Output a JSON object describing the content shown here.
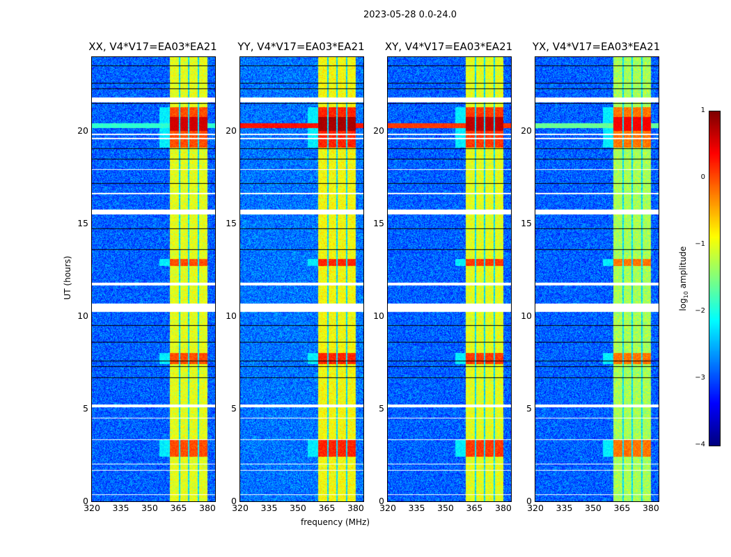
{
  "chart_data": {
    "type": "heatmap",
    "suptitle": "2023-05-28 0.0-24.0",
    "xlabel": "frequency (MHz)",
    "ylabel": "UT (hours)",
    "xlim": [
      320,
      384
    ],
    "ylim": [
      0,
      24
    ],
    "xticks": [
      320,
      335,
      350,
      365,
      380
    ],
    "yticks": [
      0,
      5,
      10,
      15,
      20
    ],
    "colormap": "jet",
    "colorbar": {
      "label": "log10 amplitude",
      "label_main": "log",
      "label_sub": "10",
      "label_rest": " amplitude",
      "range": [
        -4,
        1
      ],
      "ticks": [
        1,
        0,
        -1,
        -2,
        -3,
        -4
      ],
      "tick_labels": [
        "1",
        "0",
        "−1",
        "−2",
        "−3",
        "−4"
      ]
    },
    "panels": [
      {
        "title": "XX, V4*V17=EA03*EA21",
        "background_level": -2.9,
        "band_level": -1.0,
        "burst_level": 0.6,
        "streak_level": -1.9
      },
      {
        "title": "YY, V4*V17=EA03*EA21",
        "background_level": -2.8,
        "band_level": -0.9,
        "burst_level": 0.8,
        "streak_level": 0.3
      },
      {
        "title": "XY, V4*V17=EA03*EA21",
        "background_level": -2.9,
        "band_level": -1.0,
        "burst_level": 0.7,
        "streak_level": 0.1
      },
      {
        "title": "YX, V4*V17=EA03*EA21",
        "background_level": -2.9,
        "band_level": -1.3,
        "burst_level": 0.4,
        "streak_level": -1.6
      }
    ],
    "rfi_band_mhz": [
      360.5,
      380
    ],
    "subband_gaps_mhz": [
      365.5,
      370.3,
      375.3
    ],
    "burst_hours": [
      [
        19.1,
        21.3
      ],
      [
        12.7,
        13.1
      ],
      [
        2.4,
        3.3
      ],
      [
        7.4,
        8.0
      ]
    ],
    "strong_burst_hours": [
      [
        20.0,
        20.75
      ]
    ],
    "streak_hour": 20.3,
    "flagged_white_hours": [
      [
        21.57,
        21.8
      ],
      [
        19.55,
        19.62
      ],
      [
        19.8,
        19.85
      ],
      [
        17.9,
        17.95
      ],
      [
        16.6,
        16.66
      ],
      [
        15.5,
        15.77
      ],
      [
        11.65,
        11.83
      ],
      [
        10.22,
        10.67
      ],
      [
        5.06,
        5.24
      ],
      [
        4.48,
        4.52
      ],
      [
        3.3,
        3.34
      ],
      [
        2.0,
        2.04
      ],
      [
        1.65,
        1.69
      ],
      [
        0.33,
        0.37
      ]
    ],
    "flagged_black_hours": [
      23.55,
      22.6,
      22.3,
      21.5,
      19.06,
      18.5,
      17.2,
      14.75,
      13.6,
      9.5,
      8.6,
      7.6,
      7.3,
      6.7
    ]
  }
}
